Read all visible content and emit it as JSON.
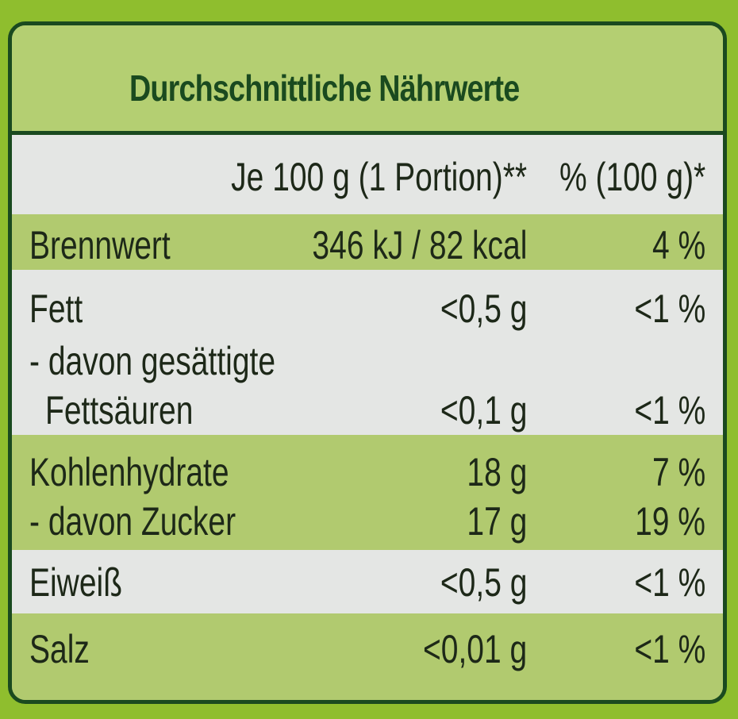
{
  "title": "Durchschnittliche Nährwerte",
  "header": {
    "per_100g": "Je 100 g (1 Portion)**",
    "percent": "% (100 g)*"
  },
  "rows": [
    {
      "label": "Brennwert",
      "value": "346 kJ / 82 kcal",
      "percent": "4 %"
    },
    {
      "label": "Fett",
      "value": "<0,5 g",
      "percent": "<1 %"
    },
    {
      "label": "- davon gesättigte",
      "value": "",
      "percent": ""
    },
    {
      "label": "Fettsäuren",
      "value": "<0,1 g",
      "percent": "<1 %"
    },
    {
      "label": "Kohlenhydrate",
      "value": "18 g",
      "percent": "7 %"
    },
    {
      "label": "- davon Zucker",
      "value": "17 g",
      "percent": "19 %"
    },
    {
      "label": "Eiweiß",
      "value": "<0,5 g",
      "percent": "<1 %"
    },
    {
      "label": "Salz",
      "value": "<0,01 g",
      "percent": "<1 %"
    }
  ],
  "colors": {
    "border": "#1a4a1f",
    "green_band": "#b1ca6f",
    "light_band": "#e4e6e4",
    "background": "#8fbe2e"
  }
}
